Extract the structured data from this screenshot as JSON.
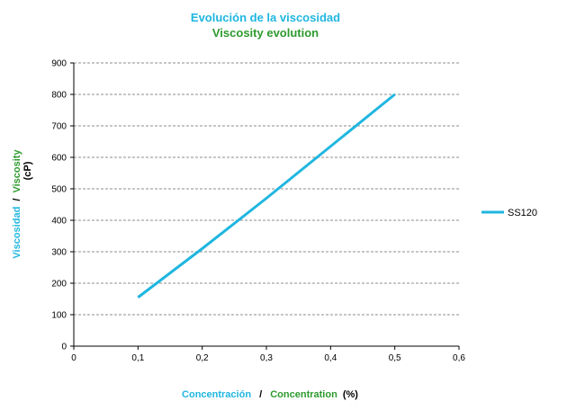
{
  "chart_data": {
    "type": "line",
    "title": "Evolución de la  viscosidad",
    "subtitle": "Viscosity evolution",
    "xlabel": {
      "es": "Concentración",
      "sep": "/",
      "en": "Concentration",
      "unit": "(%)"
    },
    "ylabel": {
      "es": "Viscosidad",
      "sep": "/",
      "en": "Viscosity",
      "unit": "(cP)"
    },
    "xlim": [
      0,
      0.6
    ],
    "ylim": [
      0,
      900
    ],
    "xticks": [
      "0",
      "0,1",
      "0,2",
      "0,3",
      "0,4",
      "0,5",
      "0,6"
    ],
    "yticks": [
      "0",
      "100",
      "200",
      "300",
      "400",
      "500",
      "600",
      "700",
      "800",
      "900"
    ],
    "grid": "horizontal-dashed",
    "legend": "right",
    "series": [
      {
        "name": "SS120",
        "color": "#1FB6E0",
        "x": [
          0.1,
          0.2,
          0.3,
          0.4,
          0.5
        ],
        "y": [
          155,
          310,
          470,
          635,
          800
        ]
      }
    ],
    "colors": {
      "spanish": "#1FB6E0",
      "english": "#2E9A2E"
    }
  }
}
